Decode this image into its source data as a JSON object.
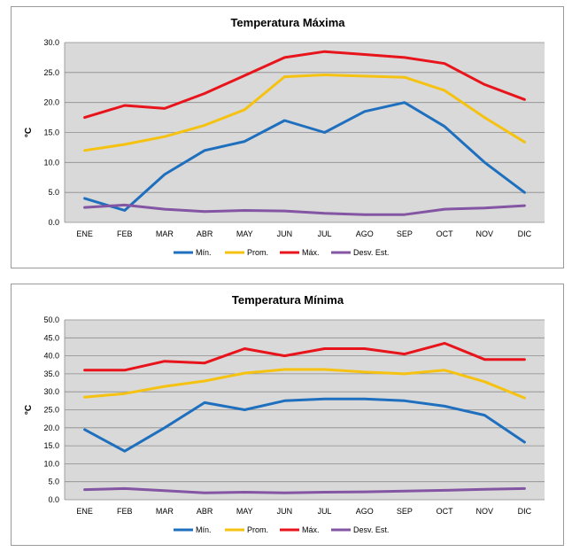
{
  "chart_data": [
    {
      "type": "line",
      "title": "Temperatura Máxima",
      "ylabel": "°C",
      "xlabel": "",
      "ylim": [
        0,
        30
      ],
      "ytick_step": 5,
      "ytick_labels": [
        "0.0",
        "5.0",
        "10.0",
        "15.0",
        "20.0",
        "25.0",
        "30.0"
      ],
      "grid": true,
      "legend_position": "bottom",
      "categories": [
        "ENE",
        "FEB",
        "MAR",
        "ABR",
        "MAY",
        "JUN",
        "JUL",
        "AGO",
        "SEP",
        "OCT",
        "NOV",
        "DIC"
      ],
      "series": [
        {
          "name": "Mín.",
          "color": "#1f6fbf",
          "values": [
            4.0,
            2.0,
            8.0,
            12.0,
            13.5,
            17.0,
            15.0,
            18.5,
            20.0,
            16.0,
            10.0,
            5.0
          ]
        },
        {
          "name": "Prom.",
          "color": "#f5c211",
          "values": [
            12.0,
            13.0,
            14.3,
            16.2,
            18.8,
            24.3,
            24.6,
            24.4,
            24.2,
            22.0,
            17.5,
            13.4
          ]
        },
        {
          "name": "Máx.",
          "color": "#e8141b",
          "values": [
            17.5,
            19.5,
            19.0,
            21.5,
            24.5,
            27.5,
            28.5,
            28.0,
            27.5,
            26.5,
            23.0,
            20.5
          ]
        },
        {
          "name": "Desv. Est.",
          "color": "#8355a3",
          "values": [
            2.5,
            2.9,
            2.2,
            1.8,
            2.0,
            1.9,
            1.5,
            1.3,
            1.3,
            2.2,
            2.4,
            2.8
          ]
        }
      ]
    },
    {
      "type": "line",
      "title": "Temperatura Mínima",
      "ylabel": "°C",
      "xlabel": "",
      "ylim": [
        0,
        50
      ],
      "ytick_step": 5,
      "ytick_labels": [
        "0.0",
        "5.0",
        "10.0",
        "15.0",
        "20.0",
        "25.0",
        "30.0",
        "35.0",
        "40.0",
        "45.0",
        "50.0"
      ],
      "grid": true,
      "legend_position": "bottom",
      "categories": [
        "ENE",
        "FEB",
        "MAR",
        "ABR",
        "MAY",
        "JUN",
        "JUL",
        "AGO",
        "SEP",
        "OCT",
        "NOV",
        "DIC"
      ],
      "series": [
        {
          "name": "Mín.",
          "color": "#1f6fbf",
          "values": [
            19.5,
            13.5,
            20.0,
            27.0,
            25.0,
            27.5,
            28.0,
            28.0,
            27.5,
            26.0,
            23.5,
            16.0
          ]
        },
        {
          "name": "Prom.",
          "color": "#f5c211",
          "values": [
            28.5,
            29.5,
            31.5,
            33.0,
            35.2,
            36.2,
            36.2,
            35.5,
            35.0,
            36.0,
            32.8,
            28.3
          ]
        },
        {
          "name": "Máx.",
          "color": "#e8141b",
          "values": [
            36.0,
            36.0,
            38.5,
            38.0,
            42.0,
            40.0,
            42.0,
            42.0,
            40.5,
            43.5,
            39.0,
            39.0
          ]
        },
        {
          "name": "Desv. Est.",
          "color": "#8355a3",
          "values": [
            2.8,
            3.1,
            2.5,
            1.9,
            2.1,
            1.9,
            2.1,
            2.2,
            2.4,
            2.6,
            2.9,
            3.1
          ]
        }
      ]
    }
  ]
}
